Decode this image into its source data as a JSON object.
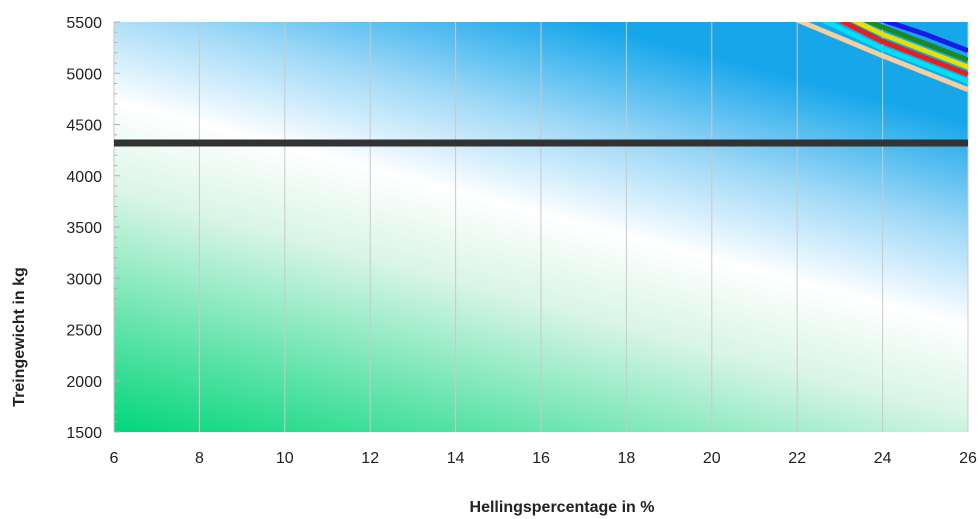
{
  "chart_data": {
    "type": "line",
    "title": "",
    "xlabel": "Hellingspercentage in %",
    "ylabel": "Treingewicht in kg",
    "xlim": [
      6,
      26
    ],
    "ylim": [
      1500,
      5500
    ],
    "x_ticks": [
      6,
      8,
      10,
      12,
      14,
      16,
      18,
      20,
      22,
      24,
      26
    ],
    "y_ticks": [
      1500,
      2000,
      2500,
      3000,
      3500,
      4000,
      4500,
      5000,
      5500
    ],
    "grid": true,
    "legend": "none",
    "background": {
      "type": "gradient",
      "colors": {
        "bottom_left": "#00d67a",
        "middle": "#ffffff",
        "top_right": "#17a6ea"
      }
    },
    "reference_line": {
      "y": 4320,
      "color": "#333333"
    },
    "series": [
      {
        "color": "#f5cfa0",
        "points": [
          [
            22,
            5520
          ],
          [
            24,
            5170
          ],
          [
            26,
            4840
          ]
        ]
      },
      {
        "color": "#00e0f0",
        "points": [
          [
            22.6,
            5520
          ],
          [
            24,
            5240
          ],
          [
            26,
            4920
          ]
        ]
      },
      {
        "color": "#e61e1e",
        "points": [
          [
            23.0,
            5520
          ],
          [
            24,
            5310
          ],
          [
            26,
            4990
          ]
        ]
      },
      {
        "color": "#e8e000",
        "points": [
          [
            23.3,
            5520
          ],
          [
            24,
            5380
          ],
          [
            26,
            5060
          ]
        ]
      },
      {
        "color": "#1e8a1e",
        "points": [
          [
            23.6,
            5520
          ],
          [
            24,
            5450
          ],
          [
            26,
            5130
          ]
        ]
      },
      {
        "color": "#1a1ae6",
        "points": [
          [
            24.0,
            5520
          ],
          [
            25,
            5380
          ],
          [
            26,
            5220
          ]
        ]
      }
    ]
  }
}
